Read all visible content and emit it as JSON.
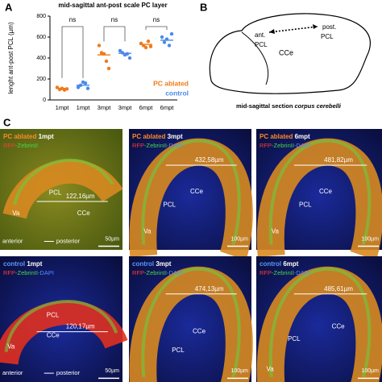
{
  "chart_data": {
    "type": "dotplot",
    "panel": "A",
    "title": "mid-sagittal ant-post scale PC layer",
    "y_label": "lenght ant-post PCL (µm)",
    "categories": [
      "1mpt",
      "1mpt",
      "3mpt",
      "3mpt",
      "6mpt",
      "6mpt"
    ],
    "ylim": [
      0,
      800
    ],
    "yticks": [
      0,
      200,
      400,
      600,
      800
    ],
    "series": [
      {
        "name": "PC ablated",
        "color": "#f07a1a",
        "values": [
          [
            120,
            100,
            110,
            95,
            105
          ],
          null,
          [
            520,
            450,
            440,
            370,
            300
          ],
          null,
          [
            540,
            520,
            500,
            560,
            510
          ],
          null
        ],
        "means": [
          110,
          null,
          430,
          null,
          530,
          null
        ]
      },
      {
        "name": "control",
        "color": "#4a8ae8",
        "values": [
          null,
          [
            120,
            140,
            170,
            160,
            110
          ],
          null,
          [
            470,
            450,
            430,
            440,
            400
          ],
          null,
          [
            600,
            550,
            580,
            520,
            630
          ]
        ],
        "means": [
          null,
          140,
          null,
          445,
          null,
          570
        ]
      }
    ],
    "annotations": [
      "ns",
      "ns",
      "ns"
    ]
  },
  "panel_b": {
    "label": "B",
    "ant": "ant.",
    "ant_pcl": "PCL",
    "post": "post.",
    "post_pcl": "PCL",
    "cce": "CCe",
    "caption": "mid-sagittal section ",
    "caption_italic": "corpus cerebelli"
  },
  "panel_c": {
    "label": "C",
    "tiles": [
      {
        "group": "PC ablated",
        "time": "1mpt",
        "stain": [
          "RFP",
          "-ZebrinII"
        ],
        "measure": "122,16µm",
        "labels": [
          "PCL",
          "CCe",
          "Va"
        ],
        "axis": [
          "anterior",
          "posterior"
        ],
        "scale": "50µm"
      },
      {
        "group": "PC ablated",
        "time": "3mpt",
        "stain": [
          "RFP",
          "-ZebrinII",
          "-DAPI"
        ],
        "measure": "432,58µm",
        "labels": [
          "CCe",
          "PCL",
          "Va"
        ],
        "scale": "100µm"
      },
      {
        "group": "PC ablated",
        "time": "6mpt",
        "stain": [
          "RFP",
          "-ZebrinII",
          "-DAPI"
        ],
        "measure": "481,82µm",
        "labels": [
          "CCe",
          "PCL",
          "Va"
        ],
        "scale": "100µm"
      },
      {
        "group": "control",
        "time": "1mpt",
        "stain": [
          "RFP",
          "-ZebrinII",
          "-DAPI"
        ],
        "measure": "120,17µm",
        "labels": [
          "PCL",
          "CCe",
          "Va"
        ],
        "axis": [
          "anterior",
          "posterior"
        ],
        "scale": "50µm"
      },
      {
        "group": "control",
        "time": "3mpt",
        "stain": [
          "RFP",
          "-ZebrinII",
          "-DAPI"
        ],
        "measure": "474,13µm",
        "labels": [
          "CCe",
          "PCL"
        ],
        "scale": "100µm"
      },
      {
        "group": "control",
        "time": "6mpt",
        "stain": [
          "RFP",
          "-ZebrinII",
          "-DAPI"
        ],
        "measure": "485,61µm",
        "labels": [
          "CCe",
          "PCL",
          "Va"
        ],
        "scale": "100µm"
      }
    ]
  }
}
